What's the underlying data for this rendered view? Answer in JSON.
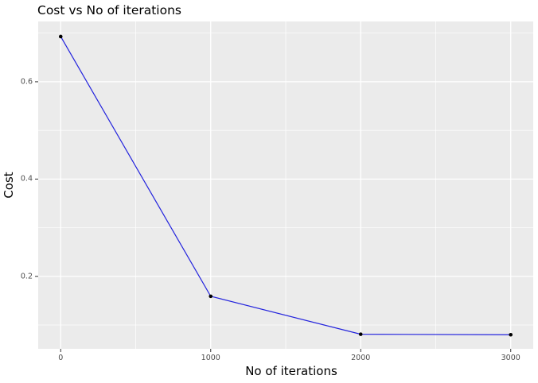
{
  "chart_data": {
    "type": "line",
    "title": "Cost vs No of iterations",
    "xlabel": "No of iterations",
    "ylabel": "Cost",
    "x": [
      0,
      1000,
      2000,
      3000
    ],
    "y": [
      0.693,
      0.159,
      0.081,
      0.08
    ],
    "series": [
      {
        "name": "Cost",
        "x": [
          0,
          1000,
          2000,
          3000
        ],
        "values": [
          0.693,
          0.159,
          0.081,
          0.08
        ]
      }
    ],
    "xlim": [
      -150,
      3150
    ],
    "ylim": [
      0.051,
      0.724
    ],
    "x_ticks": {
      "values": [
        0,
        1000,
        2000,
        3000
      ],
      "labels": [
        "0",
        "1000",
        "2000",
        "3000"
      ]
    },
    "y_ticks": {
      "values": [
        0.2,
        0.4,
        0.6
      ],
      "labels": [
        "0.2",
        "0.4",
        "0.6"
      ]
    },
    "x_minor_ticks": [
      500,
      1500,
      2500
    ],
    "y_minor_ticks": [
      0.1,
      0.3,
      0.5,
      0.7
    ],
    "grid": "major-and-minor",
    "legend": "none",
    "marker": "filled-circle",
    "colors": {
      "line": "#2222DD",
      "point": "#000000",
      "panel_background": "#EBEBEB",
      "gridline": "#FFFFFF",
      "tick_label": "#4D4D4D",
      "tick_mark": "#333333",
      "text": "#000000",
      "outer_background": "#FFFFFF"
    }
  }
}
